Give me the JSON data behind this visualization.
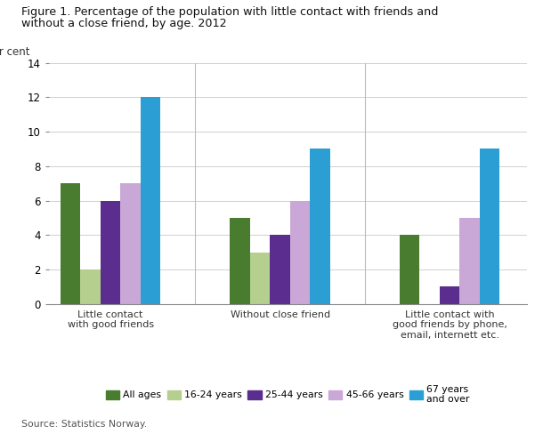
{
  "title_line1": "Figure 1. Percentage of the population with little contact with friends and",
  "title_line2": "without a close friend, by age. 2012",
  "ylabel": "Per cent",
  "ylim": [
    0,
    14
  ],
  "yticks": [
    0,
    2,
    4,
    6,
    8,
    10,
    12,
    14
  ],
  "source": "Source: Statistics Norway.",
  "categories": [
    "Little contact\nwith good friends",
    "Without close friend",
    "Little contact with\ngood friends by phone,\nemail, internett etc."
  ],
  "series": {
    "All ages": [
      7,
      5,
      4
    ],
    "16-24 years": [
      2,
      3,
      0
    ],
    "25-44 years": [
      6,
      4,
      1
    ],
    "45-66 years": [
      7,
      6,
      5
    ],
    "67 years\nand over": [
      12,
      9,
      9
    ]
  },
  "colors": {
    "All ages": "#4a7c2f",
    "16-24 years": "#b5cf8e",
    "25-44 years": "#5b2d8e",
    "45-66 years": "#c9a8d8",
    "67 years\nand over": "#2b9fd4"
  },
  "legend_labels": [
    "All ages",
    "16-24 years",
    "25-44 years",
    "45-66 years",
    "67 years\nand over"
  ],
  "bar_width": 0.13,
  "background_color": "#ffffff"
}
